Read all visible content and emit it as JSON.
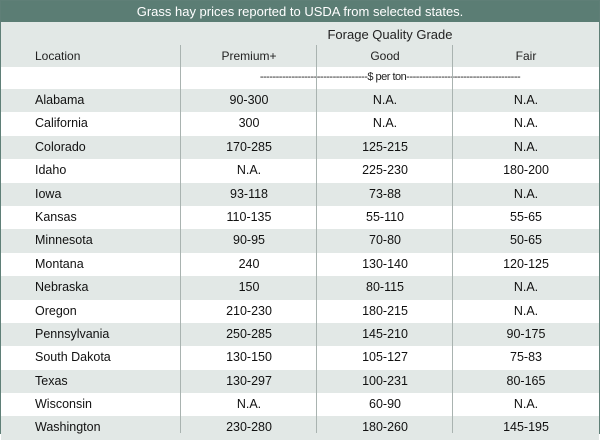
{
  "table": {
    "title": "Grass hay prices reported to USDA from selected states.",
    "group_header": "Forage Quality Grade",
    "columns": [
      "Location",
      "Premium+",
      "Good",
      "Fair"
    ],
    "unit_row": "----------------------------------$ per ton------------------------------------",
    "rows": [
      [
        "Alabama",
        "90-300",
        "N.A.",
        "N.A."
      ],
      [
        "California",
        "300",
        "N.A.",
        "N.A."
      ],
      [
        "Colorado",
        "170-285",
        "125-215",
        "N.A."
      ],
      [
        "Idaho",
        "N.A.",
        "225-230",
        "180-200"
      ],
      [
        "Iowa",
        "93-118",
        "73-88",
        "N.A."
      ],
      [
        "Kansas",
        "110-135",
        "55-110",
        "55-65"
      ],
      [
        "Minnesota",
        "90-95",
        "70-80",
        "50-65"
      ],
      [
        "Montana",
        "240",
        "130-140",
        "120-125"
      ],
      [
        "Nebraska",
        "150",
        "80-115",
        "N.A."
      ],
      [
        "Oregon",
        "210-230",
        "180-215",
        "N.A."
      ],
      [
        "Pennsylvania",
        "250-285",
        "145-210",
        "90-175"
      ],
      [
        "South Dakota",
        "130-150",
        "105-127",
        "75-83"
      ],
      [
        "Texas",
        "130-297",
        "100-231",
        "80-165"
      ],
      [
        "Wisconsin",
        "N.A.",
        "60-90",
        "N.A."
      ],
      [
        "Washington",
        "230-280",
        "180-260",
        "145-195"
      ]
    ]
  }
}
